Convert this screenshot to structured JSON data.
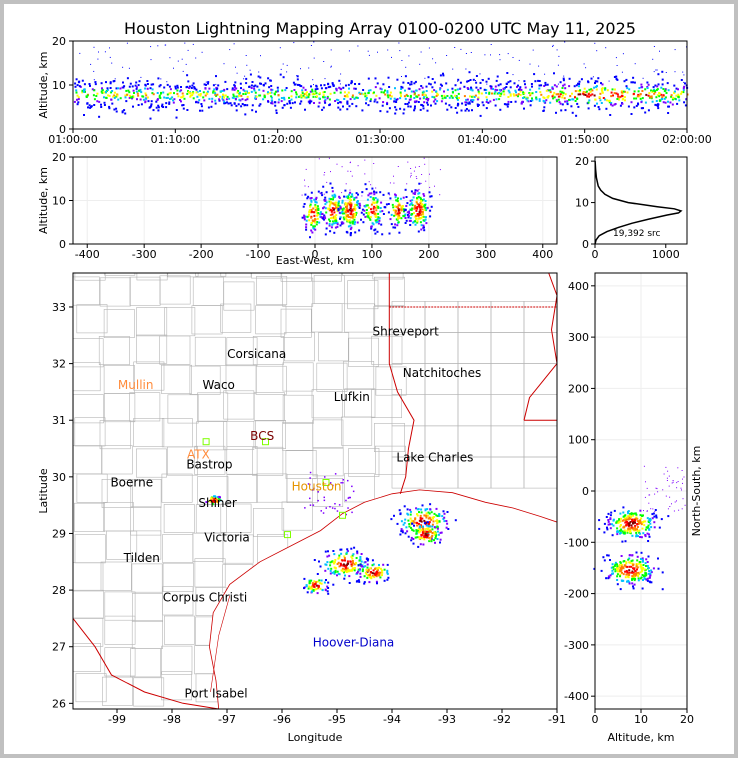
{
  "title": "Houston Lightning Mapping Array 0100-0200 UTC May 11, 2025",
  "colors": {
    "frame": "#c0c0c0",
    "page": "#ffffff",
    "state_border": "#cc0000",
    "county_border": "#b4b4b4",
    "altitude_curve": "#000000",
    "station_marker": "#7fff00",
    "density_scale": [
      "#0000ff",
      "#7f00ff",
      "#00c0ff",
      "#00ff00",
      "#ffff00",
      "#ff8000",
      "#ff0000",
      "#800000"
    ]
  },
  "chart_data": [
    {
      "type": "scatter",
      "panel": "altitude-time",
      "xlabel": "",
      "ylabel": "Altitude, km",
      "xticks": [
        "01:00:00",
        "01:10:00",
        "01:20:00",
        "01:30:00",
        "01:40:00",
        "01:50:00",
        "02:00:00"
      ],
      "xlim_minutes": [
        0,
        60
      ],
      "ylim": [
        0,
        20
      ],
      "yticks": [
        0,
        10,
        20
      ],
      "band_altitude_km": [
        5,
        11
      ]
    },
    {
      "type": "scatter",
      "panel": "altitude-east-west",
      "xlabel": "East-West, km",
      "ylabel": "Altitude, km",
      "xlim": [
        -425,
        425
      ],
      "xticks": [
        -400,
        -300,
        -200,
        -100,
        0,
        100,
        200,
        300,
        400
      ],
      "ylim": [
        0,
        20
      ],
      "yticks": [
        0,
        10,
        20
      ],
      "clusters": [
        {
          "x": -5,
          "alt": 7,
          "density": 0.7
        },
        {
          "x": 30,
          "alt": 8,
          "density": 0.8
        },
        {
          "x": 60,
          "alt": 8,
          "density": 1.0
        },
        {
          "x": 100,
          "alt": 8,
          "density": 0.7
        },
        {
          "x": 145,
          "alt": 8,
          "density": 0.6
        },
        {
          "x": 180,
          "alt": 8,
          "density": 1.0
        }
      ]
    },
    {
      "type": "line",
      "panel": "altitude-histogram",
      "xlabel": "",
      "ylabel": "",
      "xlim": [
        0,
        1300
      ],
      "xticks": [
        0,
        1000
      ],
      "ylim": [
        0,
        21
      ],
      "yticks": [
        0,
        10,
        20
      ],
      "annotation": "19,392 src",
      "altitude_km": [
        0,
        1,
        2,
        3,
        4,
        5,
        6,
        7,
        7.5,
        8,
        8.5,
        9,
        10,
        11,
        12,
        13,
        14,
        16,
        18,
        20
      ],
      "sources": [
        0,
        15,
        60,
        170,
        330,
        520,
        760,
        1020,
        1180,
        1215,
        1120,
        880,
        470,
        250,
        140,
        80,
        45,
        20,
        8,
        2
      ]
    },
    {
      "type": "scatter",
      "panel": "plan-view-map",
      "xlabel": "Longitude",
      "ylabel": "Latitude",
      "xlim": [
        -99.8,
        -91
      ],
      "xticks": [
        -99,
        -98,
        -97,
        -96,
        -95,
        -94,
        -93,
        -92,
        -91
      ],
      "ylim": [
        25.9,
        33.6
      ],
      "yticks": [
        26,
        27,
        28,
        29,
        30,
        31,
        32,
        33
      ],
      "cities": [
        {
          "name": "Shreveport",
          "lon": -93.75,
          "lat": 32.5,
          "color": "#000000"
        },
        {
          "name": "Corsicana",
          "lon": -96.46,
          "lat": 32.1,
          "color": "#000000"
        },
        {
          "name": "Natchitoches",
          "lon": -93.09,
          "lat": 31.76,
          "color": "#000000"
        },
        {
          "name": "Mullin",
          "lon": -98.66,
          "lat": 31.55,
          "color": "#ff8c3c"
        },
        {
          "name": "Waco",
          "lon": -97.15,
          "lat": 31.55,
          "color": "#000000"
        },
        {
          "name": "Lufkin",
          "lon": -94.73,
          "lat": 31.34,
          "color": "#000000"
        },
        {
          "name": "BCS",
          "lon": -96.36,
          "lat": 30.65,
          "color": "#7a0000"
        },
        {
          "name": "ATX",
          "lon": -97.52,
          "lat": 30.32,
          "color": "#ff8c3c"
        },
        {
          "name": "Bastrop",
          "lon": -97.32,
          "lat": 30.15,
          "color": "#000000"
        },
        {
          "name": "Lake Charles",
          "lon": -93.22,
          "lat": 30.27,
          "color": "#000000"
        },
        {
          "name": "Boerne",
          "lon": -98.73,
          "lat": 29.83,
          "color": "#000000"
        },
        {
          "name": "Houston",
          "lon": -95.37,
          "lat": 29.76,
          "color": "#e59400"
        },
        {
          "name": "Shiner",
          "lon": -97.17,
          "lat": 29.47,
          "color": "#000000"
        },
        {
          "name": "Victoria",
          "lon": -97.0,
          "lat": 28.86,
          "color": "#000000"
        },
        {
          "name": "Tilden",
          "lon": -98.55,
          "lat": 28.5,
          "color": "#000000"
        },
        {
          "name": "Corpus Christi",
          "lon": -97.4,
          "lat": 27.8,
          "color": "#000000"
        },
        {
          "name": "Hoover-Diana",
          "lon": -94.7,
          "lat": 27.0,
          "color": "#0000cc"
        },
        {
          "name": "Port Isabel",
          "lon": -97.2,
          "lat": 26.1,
          "color": "#000000"
        }
      ],
      "stations": [
        {
          "lon": -97.38,
          "lat": 30.62
        },
        {
          "lon": -96.3,
          "lat": 30.62
        },
        {
          "lon": -95.9,
          "lat": 28.98
        },
        {
          "lon": -95.2,
          "lat": 29.9
        },
        {
          "lon": -94.9,
          "lat": 29.32
        }
      ],
      "clusters": [
        {
          "lon": -93.45,
          "lat": 29.22,
          "size": 1.0
        },
        {
          "lon": -93.4,
          "lat": 29.0,
          "size": 0.6
        },
        {
          "lon": -94.87,
          "lat": 28.48,
          "size": 0.9
        },
        {
          "lon": -94.35,
          "lat": 28.33,
          "size": 0.6
        },
        {
          "lon": -95.4,
          "lat": 28.1,
          "size": 0.4
        },
        {
          "lon": -97.25,
          "lat": 29.6,
          "size": 0.2
        }
      ]
    },
    {
      "type": "scatter",
      "panel": "north-south-altitude",
      "xlabel": "Altitude, km",
      "ylabel": "North-South, km",
      "xlim": [
        0,
        20
      ],
      "xticks": [
        0,
        10,
        20
      ],
      "ylim": [
        -425,
        425
      ],
      "yticks": [
        -400,
        -300,
        -200,
        -100,
        0,
        100,
        200,
        300,
        400
      ],
      "clusters": [
        {
          "ns": -62,
          "alt": 7.8,
          "density": 1.0
        },
        {
          "ns": -152,
          "alt": 7.5,
          "density": 1.0
        }
      ]
    }
  ]
}
